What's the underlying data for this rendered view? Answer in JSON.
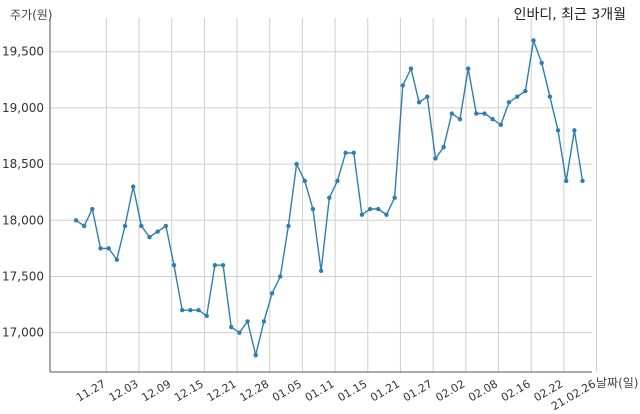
{
  "chart_data": {
    "type": "line",
    "title": "인바디, 최근 3개월",
    "ylabel": "주가(원)",
    "xlabel": "날짜(일)",
    "ylim": [
      16650,
      19800
    ],
    "yticks": [
      17000,
      17500,
      18000,
      18500,
      19000,
      19500
    ],
    "ytick_labels": [
      "17,000",
      "17,500",
      "18,000",
      "18,500",
      "19,000",
      "19,500"
    ],
    "xtick_labels": [
      "11.27",
      "12.03",
      "12.09",
      "12.15",
      "12.21",
      "12.28",
      "01.05",
      "01.11",
      "01.15",
      "01.21",
      "01.27",
      "02.02",
      "02.08",
      "02.16",
      "02.22",
      "21.02.26"
    ],
    "xtick_positions": [
      2,
      6,
      10,
      14,
      18,
      22,
      26,
      30,
      34,
      38,
      42,
      46,
      50,
      54,
      58,
      62
    ],
    "grid": true,
    "color": "#2e7eb0",
    "series": [
      {
        "values": [
          18000,
          17950,
          18100,
          17750,
          17750,
          17650,
          17950,
          18300,
          17950,
          17850,
          17900,
          17950,
          17600,
          17200,
          17200,
          17200,
          17150,
          17600,
          17600,
          17050,
          17000,
          17100,
          16800,
          17100,
          17350,
          17500,
          17950,
          18500,
          18350,
          18100,
          17550,
          18200,
          18350,
          18600,
          18600,
          18050,
          18100,
          18100,
          18050,
          18200,
          19200,
          19350,
          19050,
          19100,
          18550,
          18650,
          18950,
          18900,
          19350,
          18950,
          18950,
          18900,
          18850,
          19050,
          19100,
          19150,
          19600,
          19400,
          19100,
          18800,
          18350,
          18800,
          18350
        ]
      }
    ]
  }
}
